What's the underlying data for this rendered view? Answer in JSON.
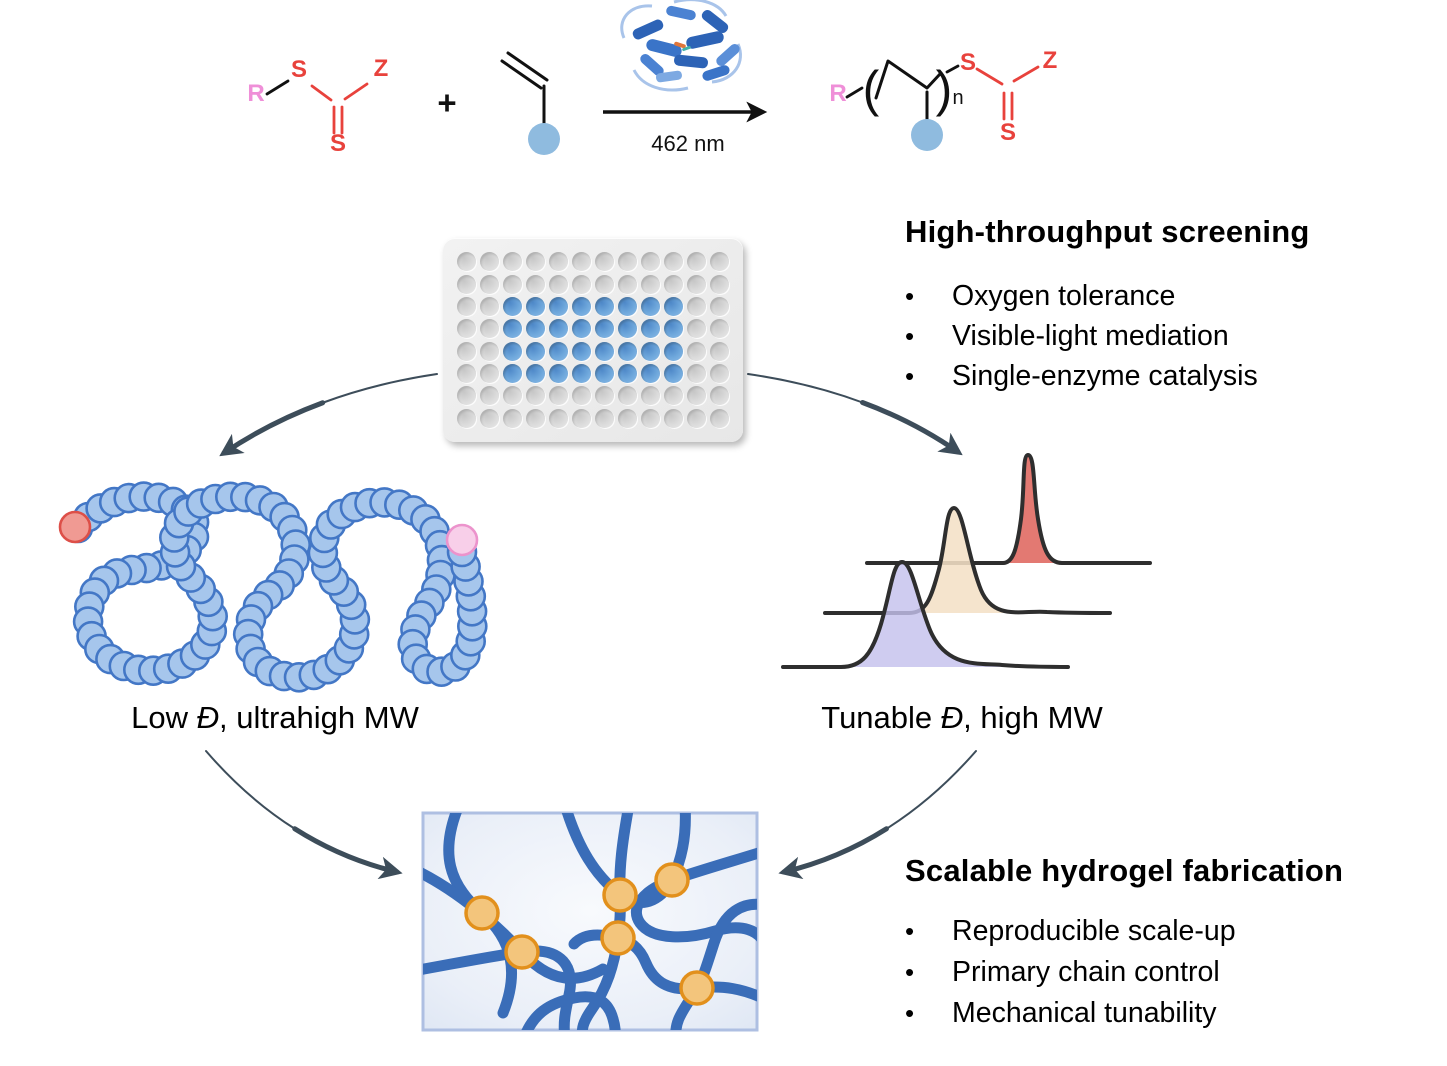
{
  "reaction": {
    "raft": {
      "r": "R",
      "s_top": "S",
      "z": "Z",
      "s_bottom": "S"
    },
    "plus": "+",
    "wavelength": "462 nm",
    "product": {
      "r": "R",
      "open_paren": "(",
      "close_paren": ")",
      "sub_n": "n",
      "s_top": "S",
      "z": "Z",
      "s_bottom": "S"
    }
  },
  "screening": {
    "title": "High-throughput screening",
    "items": [
      "Oxygen tolerance",
      "Visible-light mediation",
      "Single-enzyme catalysis"
    ]
  },
  "fabrication": {
    "title": "Scalable hydrogel fabrication",
    "items": [
      "Reproducible scale-up",
      "Primary chain control",
      "Mechanical tunability"
    ]
  },
  "labels": {
    "low_d": {
      "pre": "Low ",
      "dispersity": "Đ",
      "post": ", ultrahigh MW"
    },
    "tunable_d": {
      "pre": "Tunable ",
      "dispersity": "Đ",
      "post": ", high MW"
    }
  },
  "bullet_glyph": "•",
  "plate": {
    "rows": 8,
    "cols": 12,
    "active_rows": [
      2,
      5
    ],
    "active_cols": [
      2,
      9
    ]
  },
  "colors": {
    "raft_red": "#e8423c",
    "r_group_pink": "#ef8fd8",
    "monomer_blue": "#8fbbdf",
    "arrow_slate": "#3d4d5a",
    "bead_fill": "#a6c6ec",
    "bead_stroke": "#4377c6",
    "bead_end_red": "#f09a93",
    "bead_end_pink": "#f8cfe9",
    "curve_purple": "#c5c1ed",
    "curve_tan": "#f4e0c6",
    "curve_red": "#e2726a",
    "gel_strand": "#3a6db8",
    "gel_node_fill": "#f3c57c",
    "gel_node_stroke": "#e2901c",
    "well_blue": "#6fa8dc",
    "well_gray": "#d9d9d9"
  }
}
